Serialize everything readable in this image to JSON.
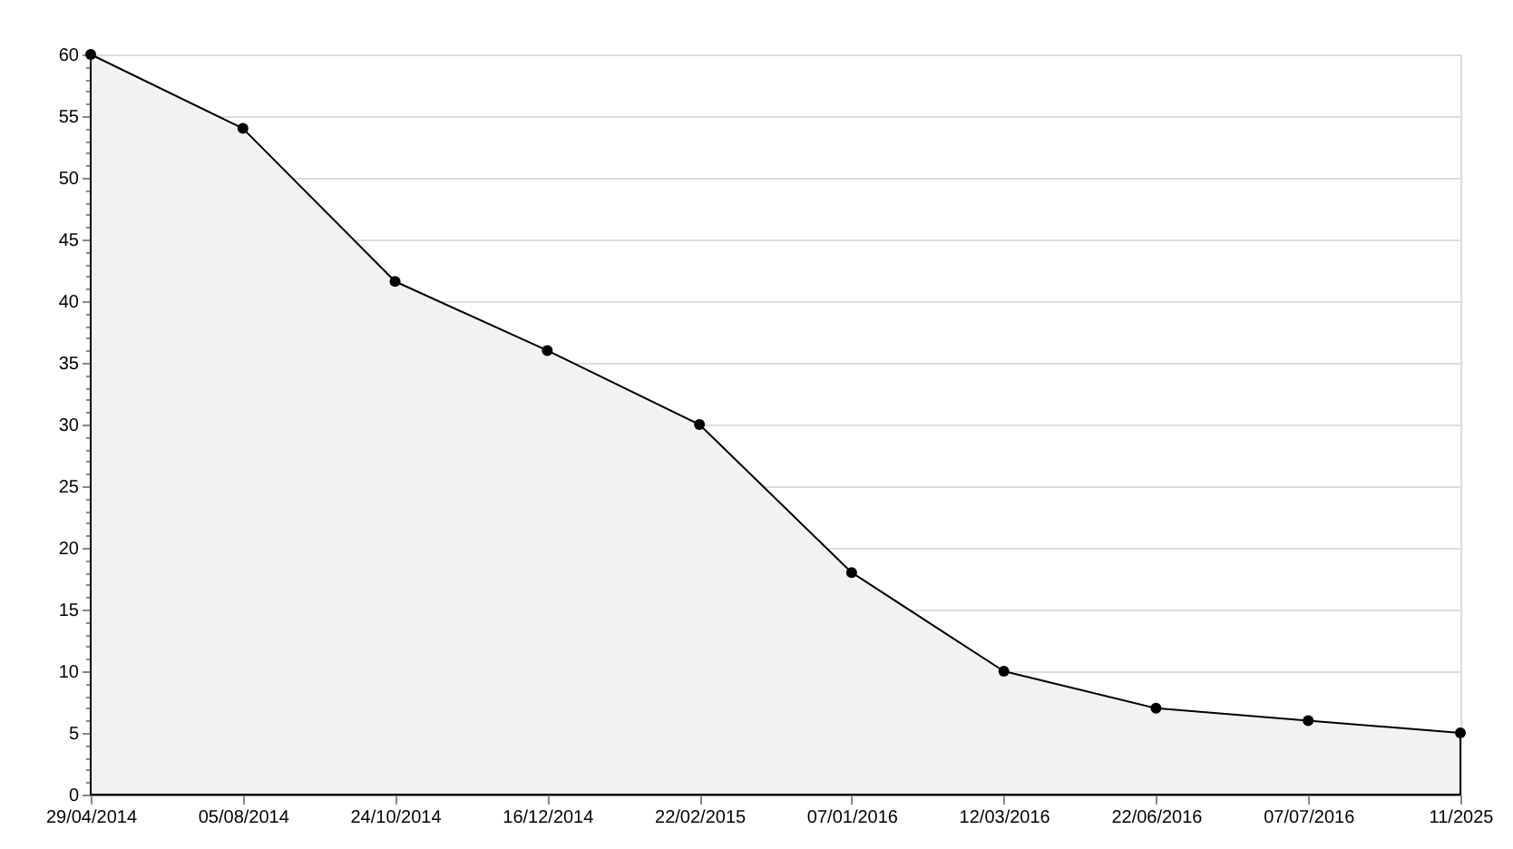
{
  "chart_data": {
    "type": "area",
    "categories": [
      "29/04/2014",
      "05/08/2014",
      "24/10/2014",
      "16/12/2014",
      "22/02/2015",
      "07/01/2016",
      "12/03/2016",
      "22/06/2016",
      "07/07/2016",
      "11/2025"
    ],
    "series": [
      {
        "color": "#f2f2f2",
        "values": [
          60,
          54,
          41.6,
          36,
          30,
          18,
          10,
          7,
          6,
          5
        ]
      }
    ],
    "ylim": [
      0,
      60
    ],
    "yticks": [
      0,
      {
        "value": 1,
        "label": null
      },
      {
        "value": 2,
        "label": null
      },
      {
        "value": 3,
        "label": null
      },
      {
        "value": 4,
        "label": null
      },
      5,
      {
        "value": 6,
        "label": null
      },
      {
        "value": 7,
        "label": null
      },
      {
        "value": 8,
        "label": null
      },
      {
        "value": 9,
        "label": null
      },
      10,
      {
        "value": 11,
        "label": null
      },
      {
        "value": 12,
        "label": null
      },
      {
        "value": 13,
        "label": null
      },
      {
        "value": 14,
        "label": null
      },
      15,
      {
        "value": 16,
        "label": null
      },
      {
        "value": 17,
        "label": null
      },
      {
        "value": 18,
        "label": null
      },
      {
        "value": 19,
        "label": null
      },
      20,
      {
        "value": 21,
        "label": null
      },
      {
        "value": 22,
        "label": null
      },
      {
        "value": 23,
        "label": null
      },
      {
        "value": 24,
        "label": null
      },
      25,
      {
        "value": 26,
        "label": null
      },
      {
        "value": 27,
        "label": null
      },
      {
        "value": 28,
        "label": null
      },
      {
        "value": 29,
        "label": null
      },
      30,
      {
        "value": 31,
        "label": null
      },
      {
        "value": 32,
        "label": null
      },
      {
        "value": 33,
        "label": null
      },
      {
        "value": 34,
        "label": null
      },
      35,
      {
        "value": 36,
        "label": null
      },
      {
        "value": 37,
        "label": null
      },
      {
        "value": 38,
        "label": null
      },
      {
        "value": 39,
        "label": null
      },
      40,
      {
        "value": 41,
        "label": null
      },
      {
        "value": 42,
        "label": null
      },
      {
        "value": 43,
        "label": null
      },
      {
        "value": 44,
        "label": null
      },
      45,
      {
        "value": 46,
        "label": null
      },
      {
        "value": 47,
        "label": null
      },
      {
        "value": 48,
        "label": null
      },
      {
        "value": 49,
        "label": null
      },
      50,
      {
        "value": 51,
        "label": null
      },
      {
        "value": 52,
        "label": null
      },
      {
        "value": 53,
        "label": null
      },
      {
        "value": 54,
        "label": null
      },
      55,
      {
        "value": 56,
        "label": null
      },
      {
        "value": 57,
        "label": null
      },
      {
        "value": 58,
        "label": null
      },
      {
        "value": 59,
        "label": null
      },
      60
    ],
    "grid": "y",
    "marker": "circle"
  }
}
